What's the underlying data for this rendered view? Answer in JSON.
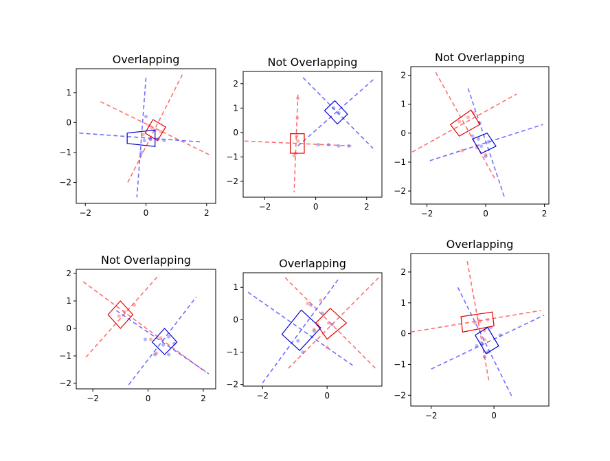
{
  "figure": {
    "background": "#ffffff"
  },
  "colors": {
    "red": "#e00000",
    "blue": "#0000cc",
    "red_line": "#ff5555",
    "blue_line": "#5555ff"
  },
  "chart_data": [
    {
      "type": "scatter",
      "title": "Overlapping",
      "xlim": [
        -2.3,
        2.3
      ],
      "ylim": [
        -2.7,
        1.8
      ],
      "xticks": [
        -2,
        0,
        2
      ],
      "yticks": [
        -2,
        -1,
        0,
        1
      ],
      "red_rect": [
        [
          -0.03,
          -0.35
        ],
        [
          0.23,
          0.1
        ],
        [
          0.65,
          -0.15
        ],
        [
          0.38,
          -0.6
        ]
      ],
      "blue_rect": [
        [
          -0.62,
          -0.35
        ],
        [
          -0.62,
          -0.7
        ],
        [
          0.3,
          -0.8
        ],
        [
          0.3,
          -0.25
        ]
      ],
      "red_lines": [
        [
          [
            -1.5,
            0.7
          ],
          [
            2.1,
            -1.08
          ]
        ],
        [
          [
            1.2,
            1.6
          ],
          [
            -0.6,
            -2.0
          ]
        ]
      ],
      "blue_lines": [
        [
          [
            -2.2,
            -0.35
          ],
          [
            1.85,
            -0.65
          ]
        ],
        [
          [
            0.0,
            1.5
          ],
          [
            -0.3,
            -2.5
          ]
        ]
      ],
      "red_points": [
        [
          0.1,
          -0.1
        ],
        [
          0.3,
          -0.25
        ],
        [
          0.5,
          -0.3
        ],
        [
          0.15,
          -0.55
        ],
        [
          -0.1,
          -0.4
        ],
        [
          0.2,
          -0.2
        ]
      ],
      "blue_points": [
        [
          -0.05,
          -0.6
        ],
        [
          0.15,
          -0.55
        ],
        [
          -0.15,
          -1.0
        ],
        [
          0.0,
          0.2
        ],
        [
          0.4,
          -0.55
        ],
        [
          0.6,
          -0.6
        ]
      ]
    },
    {
      "type": "scatter",
      "title": "Not Overlapping",
      "xlim": [
        -2.85,
        2.6
      ],
      "ylim": [
        -2.65,
        2.5
      ],
      "xticks": [
        -2,
        0,
        2
      ],
      "yticks": [
        -2,
        -1,
        0,
        1,
        2
      ],
      "red_rect": [
        [
          -1.0,
          -0.05
        ],
        [
          -0.45,
          -0.05
        ],
        [
          -0.45,
          -0.85
        ],
        [
          -1.0,
          -0.85
        ]
      ],
      "blue_rect": [
        [
          0.35,
          0.9
        ],
        [
          0.75,
          1.3
        ],
        [
          1.25,
          0.75
        ],
        [
          0.85,
          0.35
        ]
      ],
      "red_lines": [
        [
          [
            -0.7,
            1.55
          ],
          [
            -0.85,
            -2.45
          ]
        ],
        [
          [
            -2.8,
            -0.35
          ],
          [
            1.4,
            -0.55
          ]
        ]
      ],
      "blue_lines": [
        [
          [
            -0.5,
            2.25
          ],
          [
            2.25,
            -0.65
          ]
        ],
        [
          [
            -0.7,
            -0.55
          ],
          [
            2.3,
            2.2
          ]
        ]
      ],
      "red_points": [
        [
          -0.7,
          1.4
        ],
        [
          -0.72,
          0.6
        ],
        [
          -0.75,
          -0.15
        ],
        [
          -0.8,
          -0.85
        ],
        [
          -0.85,
          -0.95
        ],
        [
          -0.7,
          -0.35
        ]
      ],
      "blue_points": [
        [
          0.1,
          -0.5
        ],
        [
          0.5,
          -0.5
        ],
        [
          0.9,
          -0.55
        ],
        [
          1.3,
          -0.55
        ],
        [
          0.7,
          1.0
        ],
        [
          0.9,
          0.8
        ]
      ]
    },
    {
      "type": "scatter",
      "title": "Not Overlapping",
      "xlim": [
        -2.55,
        2.15
      ],
      "ylim": [
        -2.45,
        2.3
      ],
      "xticks": [
        -2,
        0,
        2
      ],
      "yticks": [
        -2,
        -1,
        0,
        1,
        2
      ],
      "red_rect": [
        [
          -1.2,
          0.3
        ],
        [
          -0.5,
          0.8
        ],
        [
          -0.2,
          0.3
        ],
        [
          -0.9,
          -0.1
        ]
      ],
      "blue_rect": [
        [
          -0.45,
          -0.2
        ],
        [
          0.05,
          0.0
        ],
        [
          0.35,
          -0.45
        ],
        [
          -0.15,
          -0.7
        ]
      ],
      "red_lines": [
        [
          [
            -1.7,
            2.1
          ],
          [
            0.3,
            -1.55
          ]
        ],
        [
          [
            -2.5,
            -0.65
          ],
          [
            1.05,
            1.35
          ]
        ]
      ],
      "blue_lines": [
        [
          [
            -0.6,
            1.55
          ],
          [
            0.65,
            -2.25
          ]
        ],
        [
          [
            -1.9,
            -0.95
          ],
          [
            1.95,
            0.3
          ]
        ]
      ],
      "red_points": [
        [
          -0.4,
          0.7
        ],
        [
          -0.6,
          0.55
        ],
        [
          -0.9,
          0.4
        ],
        [
          -0.8,
          -0.6
        ],
        [
          -0.3,
          -0.5
        ],
        [
          0.0,
          -0.75
        ]
      ],
      "blue_points": [
        [
          -0.25,
          -0.2
        ],
        [
          -0.15,
          -0.45
        ],
        [
          0.0,
          -0.8
        ],
        [
          -0.45,
          -0.1
        ],
        [
          -0.2,
          0.35
        ],
        [
          0.1,
          -0.3
        ]
      ]
    },
    {
      "type": "scatter",
      "title": "Not Overlapping",
      "xlim": [
        -2.6,
        2.45
      ],
      "ylim": [
        -2.2,
        2.15
      ],
      "xticks": [
        -2,
        0,
        2
      ],
      "yticks": [
        -2,
        -1,
        0,
        1,
        2
      ],
      "red_rect": [
        [
          -1.45,
          0.5
        ],
        [
          -1.0,
          1.0
        ],
        [
          -0.55,
          0.5
        ],
        [
          -1.0,
          0.0
        ]
      ],
      "blue_rect": [
        [
          0.15,
          -0.5
        ],
        [
          0.6,
          0.0
        ],
        [
          1.05,
          -0.5
        ],
        [
          0.6,
          -0.95
        ]
      ],
      "red_lines": [
        [
          [
            -2.35,
            1.7
          ],
          [
            2.1,
            -1.6
          ]
        ],
        [
          [
            -2.25,
            -1.05
          ],
          [
            0.4,
            1.95
          ]
        ]
      ],
      "blue_lines": [
        [
          [
            -1.15,
            0.65
          ],
          [
            2.2,
            -1.65
          ]
        ],
        [
          [
            -0.7,
            -2.05
          ],
          [
            1.75,
            1.15
          ]
        ]
      ],
      "red_points": [
        [
          -0.85,
          0.6
        ],
        [
          -0.5,
          0.85
        ],
        [
          -1.05,
          0.45
        ],
        [
          0.1,
          -0.4
        ],
        [
          0.45,
          -0.35
        ],
        [
          0.3,
          -0.9
        ]
      ],
      "blue_points": [
        [
          0.25,
          -0.95
        ],
        [
          0.75,
          -0.3
        ],
        [
          0.75,
          -0.95
        ],
        [
          0.95,
          -0.55
        ],
        [
          -0.1,
          -0.4
        ],
        [
          0.55,
          -0.6
        ]
      ]
    },
    {
      "type": "scatter",
      "title": "Overlapping",
      "xlim": [
        -2.6,
        1.7
      ],
      "ylim": [
        -2.05,
        1.45
      ],
      "xticks": [
        -2,
        0
      ],
      "yticks": [
        -2,
        -1,
        0,
        1
      ],
      "red_rect": [
        [
          -0.35,
          -0.1
        ],
        [
          0.1,
          0.35
        ],
        [
          0.6,
          -0.1
        ],
        [
          0.0,
          -0.6
        ]
      ],
      "blue_rect": [
        [
          -1.4,
          -0.45
        ],
        [
          -0.8,
          0.3
        ],
        [
          -0.2,
          -0.25
        ],
        [
          -0.85,
          -0.95
        ]
      ],
      "red_lines": [
        [
          [
            -1.3,
            1.3
          ],
          [
            1.55,
            -1.55
          ]
        ],
        [
          [
            -1.2,
            -1.5
          ],
          [
            1.6,
            1.3
          ]
        ]
      ],
      "blue_lines": [
        [
          [
            -2.45,
            0.85
          ],
          [
            0.85,
            -1.45
          ]
        ],
        [
          [
            -2.0,
            -1.95
          ],
          [
            0.35,
            1.25
          ]
        ]
      ],
      "red_points": [
        [
          -0.6,
          0.5
        ],
        [
          -0.2,
          0.6
        ],
        [
          -0.4,
          -0.3
        ],
        [
          0.0,
          -0.85
        ],
        [
          -0.3,
          -0.15
        ],
        [
          0.05,
          -0.1
        ]
      ],
      "blue_points": [
        [
          -0.75,
          -1.0
        ],
        [
          -0.9,
          -0.65
        ],
        [
          -0.4,
          -0.35
        ],
        [
          -0.5,
          0.45
        ],
        [
          -0.15,
          0.2
        ],
        [
          0.15,
          -0.15
        ]
      ]
    },
    {
      "type": "scatter",
      "title": "Overlapping",
      "xlim": [
        -2.65,
        1.75
      ],
      "ylim": [
        -2.35,
        2.6
      ],
      "xticks": [
        -2,
        0
      ],
      "yticks": [
        -2,
        -1,
        0,
        1,
        2
      ],
      "red_rect": [
        [
          -1.0,
          0.05
        ],
        [
          -1.05,
          0.55
        ],
        [
          -0.05,
          0.7
        ],
        [
          0.0,
          0.25
        ]
      ],
      "blue_rect": [
        [
          -0.6,
          -0.05
        ],
        [
          -0.2,
          0.2
        ],
        [
          0.15,
          -0.4
        ],
        [
          -0.25,
          -0.65
        ]
      ],
      "red_lines": [
        [
          [
            -0.85,
            2.35
          ],
          [
            -0.15,
            -1.6
          ]
        ],
        [
          [
            -2.65,
            0.05
          ],
          [
            1.5,
            0.75
          ]
        ]
      ],
      "blue_lines": [
        [
          [
            -1.15,
            1.5
          ],
          [
            0.6,
            -2.1
          ]
        ],
        [
          [
            -2.0,
            -1.15
          ],
          [
            1.6,
            0.6
          ]
        ]
      ],
      "red_points": [
        [
          -0.5,
          0.45
        ],
        [
          -0.45,
          0.4
        ],
        [
          -0.2,
          0.45
        ],
        [
          -0.6,
          0.35
        ],
        [
          -0.3,
          0.1
        ],
        [
          -0.3,
          -0.2
        ]
      ],
      "blue_points": [
        [
          -0.4,
          -0.3
        ],
        [
          -0.2,
          -0.6
        ],
        [
          -0.55,
          -0.4
        ],
        [
          -0.3,
          -0.75
        ],
        [
          0.2,
          -0.05
        ],
        [
          -0.1,
          0.2
        ]
      ]
    }
  ]
}
